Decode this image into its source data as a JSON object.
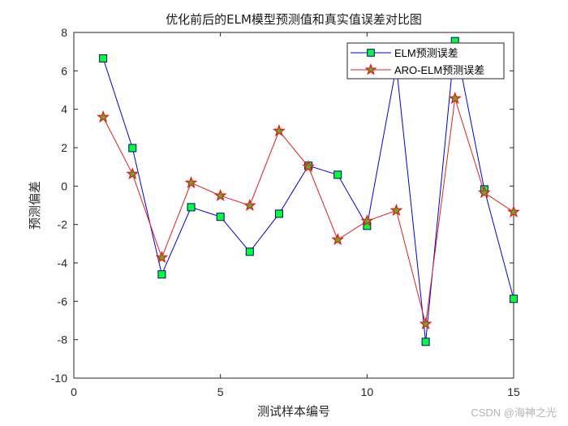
{
  "chart_data": {
    "type": "line",
    "title": "优化前后的ELM模型预测值和真实值误差对比图",
    "xlabel": "测试样本编号",
    "ylabel": "预测偏差",
    "xlim": [
      0,
      15
    ],
    "ylim": [
      -10,
      8
    ],
    "xticks": [
      0,
      5,
      10,
      15
    ],
    "yticks": [
      -10,
      -8,
      -6,
      -4,
      -2,
      0,
      2,
      4,
      6,
      8
    ],
    "grid": false,
    "legend_position": "upper right",
    "x": [
      1,
      2,
      3,
      4,
      5,
      6,
      7,
      8,
      9,
      10,
      11,
      12,
      13,
      14,
      15
    ],
    "series": [
      {
        "name": "ELM预测误差",
        "color": "#0000cc",
        "marker": "square",
        "marker_fill": "#00ff33",
        "marker_edge": "#00008b",
        "values": [
          6.65,
          1.98,
          -4.6,
          -1.1,
          -1.6,
          -3.42,
          -1.44,
          1.06,
          0.59,
          -2.07,
          6.25,
          -8.11,
          7.55,
          -0.17,
          -5.87
        ]
      },
      {
        "name": "ARO-ELM预测误差",
        "color": "#e02020",
        "marker": "star",
        "marker_fill": "#66aa22",
        "marker_edge": "#e02020",
        "values": [
          3.59,
          0.63,
          -3.72,
          0.17,
          -0.5,
          -1.01,
          2.87,
          1.01,
          -2.79,
          -1.82,
          -1.27,
          -7.18,
          4.56,
          -0.34,
          -1.35
        ]
      }
    ]
  },
  "watermark": "CSDN @海神之光"
}
